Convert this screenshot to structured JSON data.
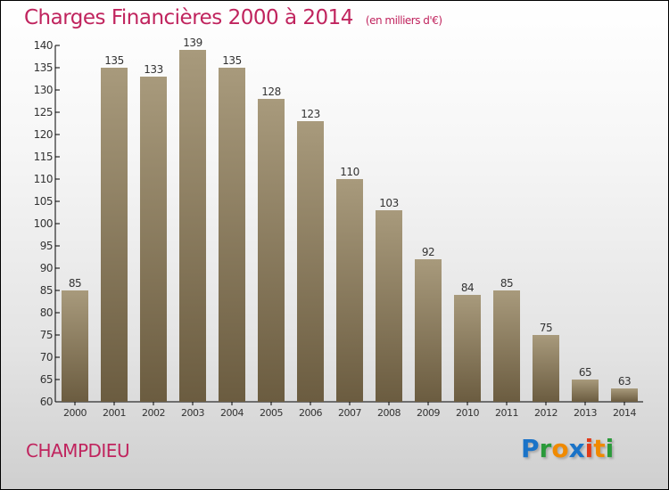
{
  "chart_data": {
    "type": "bar",
    "title": "Charges Financières 2000 à 2014",
    "unit": "(en milliers d'€)",
    "categories": [
      "2000",
      "2001",
      "2002",
      "2003",
      "2004",
      "2005",
      "2006",
      "2007",
      "2008",
      "2009",
      "2010",
      "2011",
      "2012",
      "2013",
      "2014"
    ],
    "values": [
      85,
      135,
      133,
      139,
      135,
      128,
      123,
      110,
      103,
      92,
      84,
      85,
      75,
      65,
      63
    ],
    "ylim": [
      60,
      140
    ],
    "yticks": [
      60,
      65,
      70,
      75,
      80,
      85,
      90,
      95,
      100,
      105,
      110,
      115,
      120,
      125,
      130,
      135,
      140
    ],
    "xlabel": "",
    "ylabel": ""
  },
  "city": "CHAMPDIEU",
  "logo": "Proxiti",
  "colors": {
    "title": "#c0245e",
    "bar_top": "#a89a7c",
    "bar_bottom": "#6b5c40"
  }
}
